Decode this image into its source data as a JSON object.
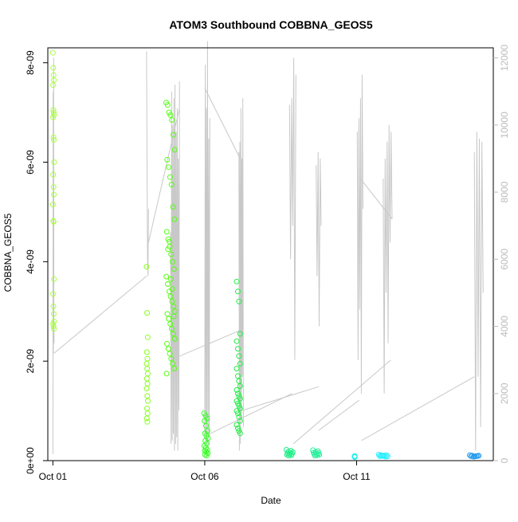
{
  "chart_data": {
    "type": "scatter",
    "title": "ATOM3 Southbound COBBNA_GEOS5",
    "xlabel": "Date",
    "ylabel": "COBBNA_GEOS5",
    "x_range": [
      "2016-09-30T20:00",
      "2016-10-15T12:00"
    ],
    "ylim": [
      0,
      8.3e-09
    ],
    "y2lim": [
      0,
      12300
    ],
    "x_ticks": [
      {
        "label": "Oct 01",
        "date": "2016-10-01T00:00"
      },
      {
        "label": "Oct 06",
        "date": "2016-10-06T00:00"
      },
      {
        "label": "Oct 11",
        "date": "2016-10-11T00:00"
      }
    ],
    "y_ticks": [
      {
        "label": "0e+00",
        "value": 0
      },
      {
        "label": "2e-09",
        "value": 2e-09
      },
      {
        "label": "4e-09",
        "value": 4e-09
      },
      {
        "label": "6e-09",
        "value": 6e-09
      },
      {
        "label": "8e-09",
        "value": 8e-09
      }
    ],
    "y2_ticks": [
      {
        "label": "0",
        "value": 0
      },
      {
        "label": "2000",
        "value": 2000
      },
      {
        "label": "4000",
        "value": 4000
      },
      {
        "label": "6000",
        "value": 6000
      },
      {
        "label": "8000",
        "value": 8000
      },
      {
        "label": "10000",
        "value": 10000
      },
      {
        "label": "12000",
        "value": 12000
      }
    ],
    "grid": false,
    "series": [
      {
        "kind": "points",
        "marker": "open-circle",
        "color_by_time": true,
        "flights": [
          {
            "date": "2016-10-01T00:30",
            "span_h": 1.0,
            "color": "#aaff44",
            "values": [
              8.2e-09,
              7.9e-09,
              7.75e-09,
              7.65e-09,
              7.55e-09,
              7.05e-09,
              7e-09,
              6.95e-09,
              6.9e-09,
              6.5e-09,
              6.45e-09,
              6e-09,
              5.75e-09,
              5.5e-09,
              5.35e-09,
              5.15e-09,
              4.82e-09,
              4.8e-09,
              3.65e-09,
              3.35e-09,
              3.1e-09,
              2.95e-09,
              2.8e-09,
              2.75e-09,
              2.7e-09,
              2.65e-09
            ]
          },
          {
            "date": "2016-10-04T02:30",
            "span_h": 1.0,
            "color": "#88ff22",
            "values": [
              3.9e-09,
              2.97e-09,
              2.48e-09,
              2.18e-09,
              2.05e-09,
              1.95e-09,
              1.85e-09,
              1.75e-09,
              1.65e-09,
              1.55e-09,
              1.45e-09,
              1.3e-09,
              1.2e-09,
              1.05e-09,
              9.5e-10,
              8.5e-10,
              7.8e-10
            ]
          },
          {
            "date": "2016-10-04T21:00",
            "span_h": 7.0,
            "color": "#55ff11",
            "values": [
              7.2e-09,
              7.15e-09,
              7e-09,
              6.95e-09,
              6.85e-09,
              6.55e-09,
              6.25e-09,
              6.05e-09,
              5.9e-09,
              5.7e-09,
              5.55e-09,
              5.1e-09,
              4.85e-09,
              4.6e-09,
              4.45e-09,
              4.3e-09,
              4.15e-09,
              4e-09,
              3.85e-09,
              3.7e-09,
              3.55e-09,
              3.4e-09,
              3.3e-09,
              3.2e-09,
              3.1e-09,
              3e-09,
              2.95e-09,
              2.85e-09,
              2.75e-09,
              2.65e-09,
              2.55e-09,
              2.45e-09,
              2.35e-09,
              2.25e-09,
              2.15e-09,
              2.05e-09,
              1.95e-09,
              1.85e-09,
              1.75e-09,
              4.25e-09,
              4.4e-09,
              3.65e-09,
              3.45e-09,
              2.9e-09
            ]
          },
          {
            "date": "2016-10-06T01:00",
            "span_h": 3.0,
            "color": "#33ff22",
            "values": [
              9.5e-10,
              9e-10,
              8.5e-10,
              8e-10,
              7e-10,
              6e-10,
              5.5e-10,
              5e-10,
              4.5e-10,
              4e-10,
              3.5e-10,
              3e-10,
              2.5e-10,
              2.2e-10,
              2e-10,
              1.8e-10,
              1.5e-10,
              1.2e-10,
              1e-10
            ]
          },
          {
            "date": "2016-10-07T03:00",
            "span_h": 3.5,
            "color": "#22ee44",
            "values": [
              3.6e-09,
              3.4e-09,
              3.2e-09,
              2.55e-09,
              2.4e-09,
              2.25e-09,
              2.1e-09,
              1.95e-09,
              1.85e-09,
              1.7e-09,
              1.6e-09,
              1.5e-09,
              1.42e-09,
              1.35e-09,
              1.3e-09,
              1.25e-09,
              1.2e-09,
              1.15e-09,
              1.1e-09,
              1.05e-09,
              1e-09,
              9.5e-10,
              8.8e-10,
              8e-10,
              7.2e-10,
              6.5e-10,
              6e-10,
              5.5e-10
            ]
          },
          {
            "date": "2016-10-08T19:00",
            "span_h": 5.0,
            "color": "#22ee88",
            "values": [
              2.2e-10,
              2e-10,
              1.8e-10,
              1.7e-10,
              1.6e-10,
              1.5e-10,
              1.4e-10,
              1.3e-10,
              1.2e-10,
              1.1e-10,
              1e-10
            ]
          },
          {
            "date": "2016-10-09T16:00",
            "span_h": 5.0,
            "color": "#22ee99",
            "values": [
              2.1e-10,
              1.9e-10,
              1.7e-10,
              1.6e-10,
              1.5e-10,
              1.4e-10,
              1.3e-10,
              1.2e-10,
              1.1e-10,
              1e-10
            ]
          },
          {
            "date": "2016-10-11T01:00",
            "span_h": 5.0,
            "color": "#22eeee",
            "values": [
              9e-11,
              8.5e-11,
              8e-11,
              7.5e-11,
              7e-11,
              8e-11,
              9e-11
            ]
          },
          {
            "date": "2016-10-11T21:00",
            "span_h": 7.0,
            "color": "#22eeff",
            "values": [
              1.2e-10,
              1.1e-10,
              1e-10,
              9.5e-11,
              9e-11,
              8.5e-11,
              8e-11,
              1e-10,
              1.1e-10
            ]
          },
          {
            "date": "2016-10-14T21:00",
            "span_h": 7.0,
            "color": "#2299ee",
            "values": [
              1.1e-10,
              1e-10,
              9.5e-11,
              9e-11,
              8.5e-11,
              8e-11,
              1e-10,
              9e-11
            ]
          }
        ]
      },
      {
        "kind": "line",
        "color": "#c8c8c8",
        "axis": "right",
        "flights": [
          {
            "start": "2016-10-01T00:00",
            "end": "2016-10-01T01:00",
            "alts": [
              200,
              11000,
              3200,
              12000,
              4000,
              3500
            ]
          },
          {
            "start": "2016-10-04T02:00",
            "end": "2016-10-04T03:30",
            "alts": [
              12200,
              9000,
              6000,
              5500,
              7500
            ]
          },
          {
            "start": "2016-10-04T21:00",
            "end": "2016-10-05T04:00",
            "alts": [
              6800,
              500,
              11000,
              600,
              10000,
              800,
              10800,
              300,
              11200,
              500,
              9800,
              700,
              10500,
              300,
              9000,
              1500,
              11300
            ]
          },
          {
            "start": "2016-10-06T00:00",
            "end": "2016-10-06T04:00",
            "alts": [
              800,
              11800,
              600,
              10500,
              500,
              12500,
              400,
              9600,
              700,
              10200
            ]
          },
          {
            "start": "2016-10-07T03:00",
            "end": "2016-10-07T06:30",
            "alts": [
              9200,
              300,
              9500,
              500,
              10500,
              1200,
              9000,
              2500,
              10800,
              1000
            ]
          },
          {
            "start": "2016-10-08T19:00",
            "end": "2016-10-09T00:00",
            "alts": [
              10600,
              6000,
              10800,
              7000,
              12000,
              3000,
              11500
            ]
          },
          {
            "start": "2016-10-09T16:00",
            "end": "2016-10-09T20:00",
            "alts": [
              8800,
              5500,
              9200,
              4000,
              9000,
              7000
            ]
          },
          {
            "start": "2016-10-11T00:30",
            "end": "2016-10-11T05:00",
            "alts": [
              9800,
              3000,
              10200,
              4500,
              10800,
              2000,
              11500,
              7500
            ]
          },
          {
            "start": "2016-10-11T21:00",
            "end": "2016-10-12T04:00",
            "alts": [
              8400,
              2000,
              9000,
              5000,
              9500,
              3500,
              10000,
              6500,
              9800,
              7200
            ]
          },
          {
            "start": "2016-10-14T21:00",
            "end": "2016-10-15T04:00",
            "alts": [
              9200,
              300,
              9800,
              2500,
              9600,
              1000,
              9500,
              5000
            ]
          }
        ],
        "connectors": [
          [
            "2016-10-01T01:00",
            3200,
            "2016-10-04T02:00",
            5500
          ],
          [
            "2016-10-04T03:30",
            6500,
            "2016-10-05T04:00",
            10500
          ],
          [
            "2016-10-04T21:00",
            3000,
            "2016-10-07T05:00",
            3900
          ],
          [
            "2016-10-06T00:00",
            11100,
            "2016-10-07T04:00",
            9000
          ],
          [
            "2016-10-06T04:00",
            800,
            "2016-10-08T21:00",
            2000
          ],
          [
            "2016-10-07T06:00",
            1500,
            "2016-10-09T18:00",
            2200
          ],
          [
            "2016-10-08T22:00",
            500,
            "2016-10-12T03:00",
            3000
          ],
          [
            "2016-10-09T18:00",
            900,
            "2016-10-11T02:00",
            1800
          ],
          [
            "2016-10-11T03:00",
            8400,
            "2016-10-12T04:00",
            7200
          ],
          [
            "2016-10-11T04:00",
            600,
            "2016-10-14T21:00",
            2500
          ]
        ]
      }
    ]
  }
}
